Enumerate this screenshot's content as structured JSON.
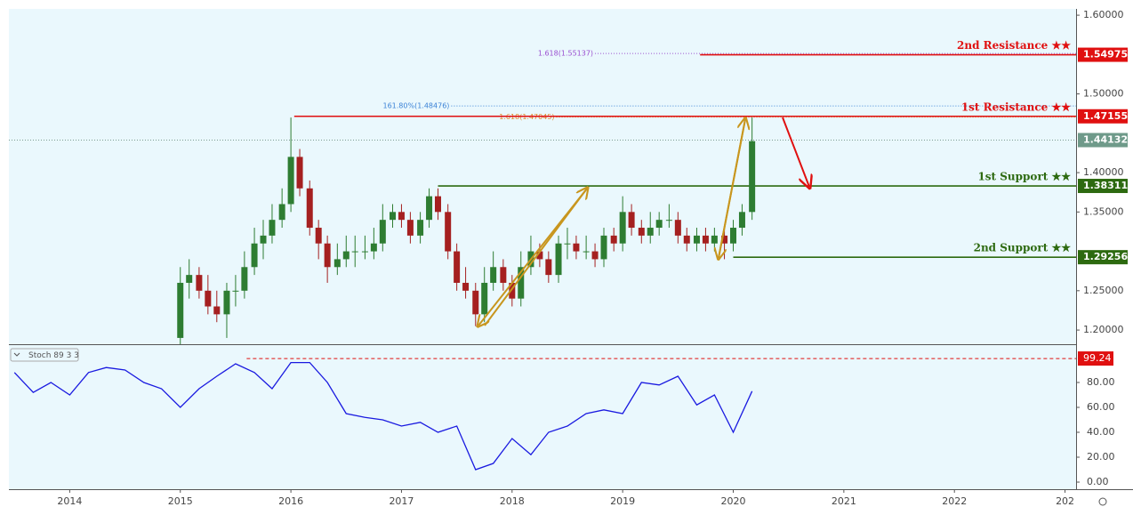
{
  "chart_data": {
    "type": "candlestick",
    "x": [
      2015,
      2015.08,
      2015.17,
      2015.25,
      2015.33,
      2015.42,
      2015.5,
      2015.58,
      2015.67,
      2015.75,
      2015.83,
      2015.92,
      2016,
      2016.08,
      2016.17,
      2016.25,
      2016.33,
      2016.42,
      2016.5,
      2016.58,
      2016.67,
      2016.75,
      2016.83,
      2016.92,
      2017,
      2017.08,
      2017.17,
      2017.25,
      2017.33,
      2017.42,
      2017.5,
      2017.58,
      2017.67,
      2017.75,
      2017.83,
      2017.92,
      2018,
      2018.08,
      2018.17,
      2018.25,
      2018.33,
      2018.42,
      2018.5,
      2018.58,
      2018.67,
      2018.75,
      2018.83,
      2018.92,
      2019,
      2019.08,
      2019.17,
      2019.25,
      2019.33,
      2019.42,
      2019.5,
      2019.58,
      2019.67,
      2019.75,
      2019.83,
      2019.92,
      2020,
      2020.08,
      2020.17
    ],
    "open": [
      1.19,
      1.26,
      1.27,
      1.25,
      1.23,
      1.22,
      1.25,
      1.25,
      1.28,
      1.31,
      1.32,
      1.34,
      1.36,
      1.42,
      1.38,
      1.33,
      1.31,
      1.28,
      1.29,
      1.3,
      1.3,
      1.3,
      1.31,
      1.34,
      1.35,
      1.34,
      1.32,
      1.34,
      1.37,
      1.35,
      1.3,
      1.26,
      1.25,
      1.22,
      1.26,
      1.28,
      1.26,
      1.24,
      1.28,
      1.3,
      1.29,
      1.27,
      1.31,
      1.31,
      1.3,
      1.3,
      1.29,
      1.32,
      1.31,
      1.35,
      1.33,
      1.32,
      1.33,
      1.34,
      1.34,
      1.32,
      1.31,
      1.32,
      1.31,
      1.32,
      1.31,
      1.33,
      1.35
    ],
    "high": [
      1.28,
      1.29,
      1.28,
      1.27,
      1.25,
      1.26,
      1.27,
      1.3,
      1.33,
      1.34,
      1.36,
      1.38,
      1.47,
      1.43,
      1.39,
      1.34,
      1.32,
      1.31,
      1.32,
      1.32,
      1.32,
      1.33,
      1.36,
      1.36,
      1.36,
      1.35,
      1.35,
      1.38,
      1.38,
      1.36,
      1.31,
      1.28,
      1.26,
      1.28,
      1.3,
      1.29,
      1.27,
      1.3,
      1.32,
      1.31,
      1.3,
      1.32,
      1.33,
      1.32,
      1.32,
      1.31,
      1.33,
      1.33,
      1.37,
      1.36,
      1.34,
      1.35,
      1.35,
      1.36,
      1.35,
      1.33,
      1.33,
      1.33,
      1.33,
      1.33,
      1.34,
      1.36,
      1.47
    ],
    "low": [
      1.18,
      1.24,
      1.24,
      1.22,
      1.21,
      1.19,
      1.23,
      1.24,
      1.27,
      1.29,
      1.31,
      1.33,
      1.35,
      1.37,
      1.32,
      1.29,
      1.26,
      1.27,
      1.28,
      1.28,
      1.29,
      1.29,
      1.3,
      1.33,
      1.33,
      1.31,
      1.31,
      1.33,
      1.34,
      1.29,
      1.25,
      1.24,
      1.205,
      1.21,
      1.25,
      1.25,
      1.23,
      1.23,
      1.27,
      1.28,
      1.26,
      1.26,
      1.29,
      1.29,
      1.29,
      1.28,
      1.28,
      1.3,
      1.3,
      1.32,
      1.31,
      1.31,
      1.32,
      1.33,
      1.31,
      1.3,
      1.3,
      1.3,
      1.3,
      1.29,
      1.3,
      1.32,
      1.34
    ],
    "close": [
      1.26,
      1.27,
      1.25,
      1.23,
      1.22,
      1.25,
      1.25,
      1.28,
      1.31,
      1.32,
      1.34,
      1.36,
      1.42,
      1.38,
      1.33,
      1.31,
      1.28,
      1.29,
      1.3,
      1.3,
      1.3,
      1.31,
      1.34,
      1.35,
      1.34,
      1.32,
      1.34,
      1.37,
      1.35,
      1.3,
      1.26,
      1.25,
      1.22,
      1.26,
      1.28,
      1.26,
      1.24,
      1.28,
      1.3,
      1.29,
      1.27,
      1.31,
      1.31,
      1.3,
      1.3,
      1.29,
      1.32,
      1.31,
      1.35,
      1.33,
      1.32,
      1.33,
      1.34,
      1.34,
      1.32,
      1.31,
      1.32,
      1.31,
      1.32,
      1.31,
      1.33,
      1.35,
      1.44
    ],
    "up_color": "#2e7d32",
    "down_color": "#a52020",
    "xlim": [
      2013.45,
      2023.1
    ],
    "xticks": [
      2014,
      2015,
      2016,
      2017,
      2018,
      2019,
      2020,
      2021,
      2022,
      {
        "value": 2023,
        "label": "202"
      }
    ],
    "ylim": [
      1.182,
      1.608
    ],
    "yticks": [
      {
        "value": 1.6,
        "label": "1.60000"
      },
      {
        "value": 1.5,
        "label": "1.50000"
      },
      {
        "value": 1.4,
        "label": "1.40000"
      },
      {
        "value": 1.35,
        "label": "1.35000"
      },
      {
        "value": 1.25,
        "label": "1.25000"
      },
      {
        "value": 1.2,
        "label": "1.20000"
      }
    ],
    "current_price": 1.44132,
    "levels": [
      {
        "label": "2nd Resistance ★★",
        "value": 1.54975,
        "start": 2019.7,
        "color": "#e01010"
      },
      {
        "label": "1st Resistance ★★",
        "value": 1.47155,
        "start": 2016.03,
        "color": "#e01010"
      },
      {
        "label": "1st Support ★★",
        "value": 1.38311,
        "start": 2017.33,
        "color": "#2d6a10"
      },
      {
        "label": "2nd Support ★★",
        "value": 1.29256,
        "start": 2020.0,
        "color": "#2d6a10"
      }
    ],
    "fib_levels": [
      {
        "label": "1.618(1.55137)",
        "value": 1.55137,
        "start": 2018.75,
        "color": "#9b4fd0"
      },
      {
        "label": "161.80%(1.48476)",
        "value": 1.48476,
        "start": 2017.45,
        "color": "#3b82d6"
      },
      {
        "label": "1.618(1.47045)",
        "value": 1.47045,
        "start": 2018.4,
        "color": "#e0892a"
      }
    ],
    "stoch": {
      "label": "Stoch 89 3 3",
      "color": "#1a1ae0",
      "x": [
        2013.5,
        2013.67,
        2013.83,
        2014,
        2014.17,
        2014.33,
        2014.5,
        2014.67,
        2014.83,
        2015,
        2015.17,
        2015.33,
        2015.5,
        2015.67,
        2015.83,
        2016,
        2016.17,
        2016.33,
        2016.5,
        2016.67,
        2016.83,
        2017,
        2017.17,
        2017.33,
        2017.5,
        2017.67,
        2017.83,
        2018,
        2018.17,
        2018.33,
        2018.5,
        2018.67,
        2018.83,
        2019,
        2019.17,
        2019.33,
        2019.5,
        2019.67,
        2019.83,
        2020,
        2020.17
      ],
      "values": [
        88,
        72,
        80,
        70,
        88,
        92,
        90,
        80,
        75,
        60,
        75,
        85,
        95,
        88,
        75,
        96,
        96,
        80,
        55,
        52,
        50,
        45,
        48,
        40,
        45,
        10,
        15,
        35,
        22,
        40,
        45,
        55,
        58,
        55,
        80,
        78,
        85,
        62,
        70,
        40,
        73
      ],
      "level": 99.24,
      "level_start": 2015.6,
      "ylim": [
        -5.7,
        110
      ],
      "yticks": [
        {
          "value": 0,
          "label": "0.00"
        },
        {
          "value": 20,
          "label": "20.00"
        },
        {
          "value": 40,
          "label": "40.00"
        },
        {
          "value": 60,
          "label": "60.00"
        },
        {
          "value": 80,
          "label": "80.00"
        }
      ]
    }
  }
}
